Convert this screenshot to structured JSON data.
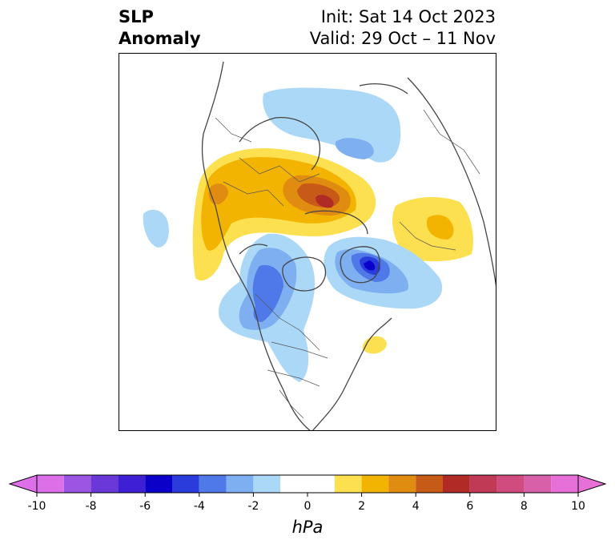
{
  "title": {
    "line1": "SLP",
    "line2": "Anomaly",
    "init": "Init: Sat 14 Oct 2023",
    "valid": "Valid: 29 Oct – 11 Nov"
  },
  "colorbar": {
    "unit": "hPa",
    "ticks": [
      "-10",
      "-8",
      "-6",
      "-4",
      "-2",
      "0",
      "2",
      "4",
      "6",
      "8",
      "10"
    ],
    "levels": [
      -10,
      -9,
      -8,
      -7,
      -6,
      -5,
      -4,
      -3,
      -2,
      -1,
      1,
      2,
      3,
      4,
      5,
      6,
      7,
      8,
      9,
      10
    ],
    "colors": [
      "#dd70e8",
      "#9b55e0",
      "#6a38d8",
      "#3f1fd4",
      "#0a00c8",
      "#2a3ddc",
      "#4f78e8",
      "#7eaff0",
      "#acd8f8",
      "#ffffff",
      "#fde050",
      "#f2b400",
      "#e08c10",
      "#c85a18",
      "#b02a26",
      "#c03a56",
      "#d04c7e",
      "#d860a8",
      "#e670d8"
    ],
    "extend": "both"
  },
  "map": {
    "projection": "north polar stereographic",
    "field": "sea level pressure anomaly"
  }
}
